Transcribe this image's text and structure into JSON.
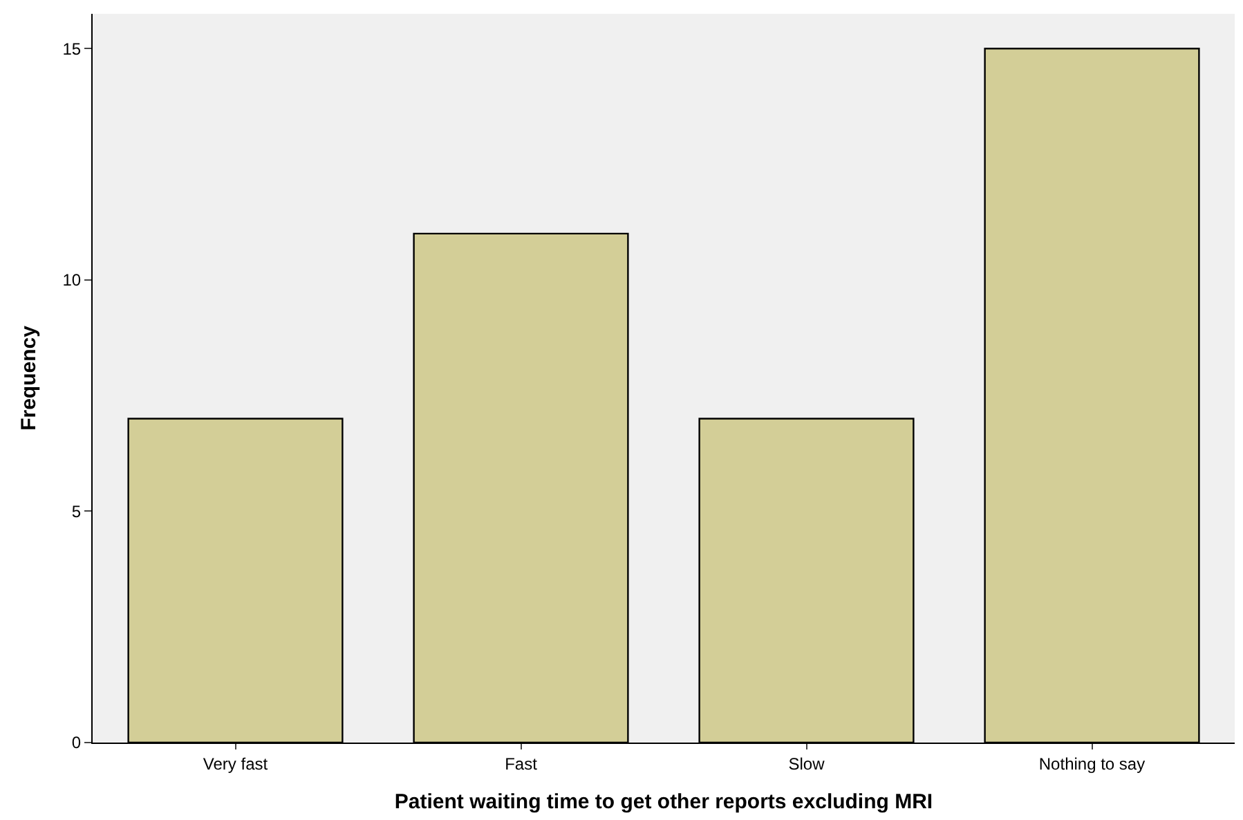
{
  "chart_data": {
    "type": "bar",
    "xlabel": "Patient waiting time to get other reports excluding MRI",
    "ylabel": "Frequency",
    "categories": [
      "Very fast",
      "Fast",
      "Slow",
      "Nothing to say"
    ],
    "values": [
      7,
      11,
      7,
      15
    ],
    "color": "#d3ce97",
    "ylim": [
      0,
      15.75
    ],
    "yticks": [
      0,
      5,
      10,
      15
    ],
    "grid": false,
    "legend": false
  }
}
